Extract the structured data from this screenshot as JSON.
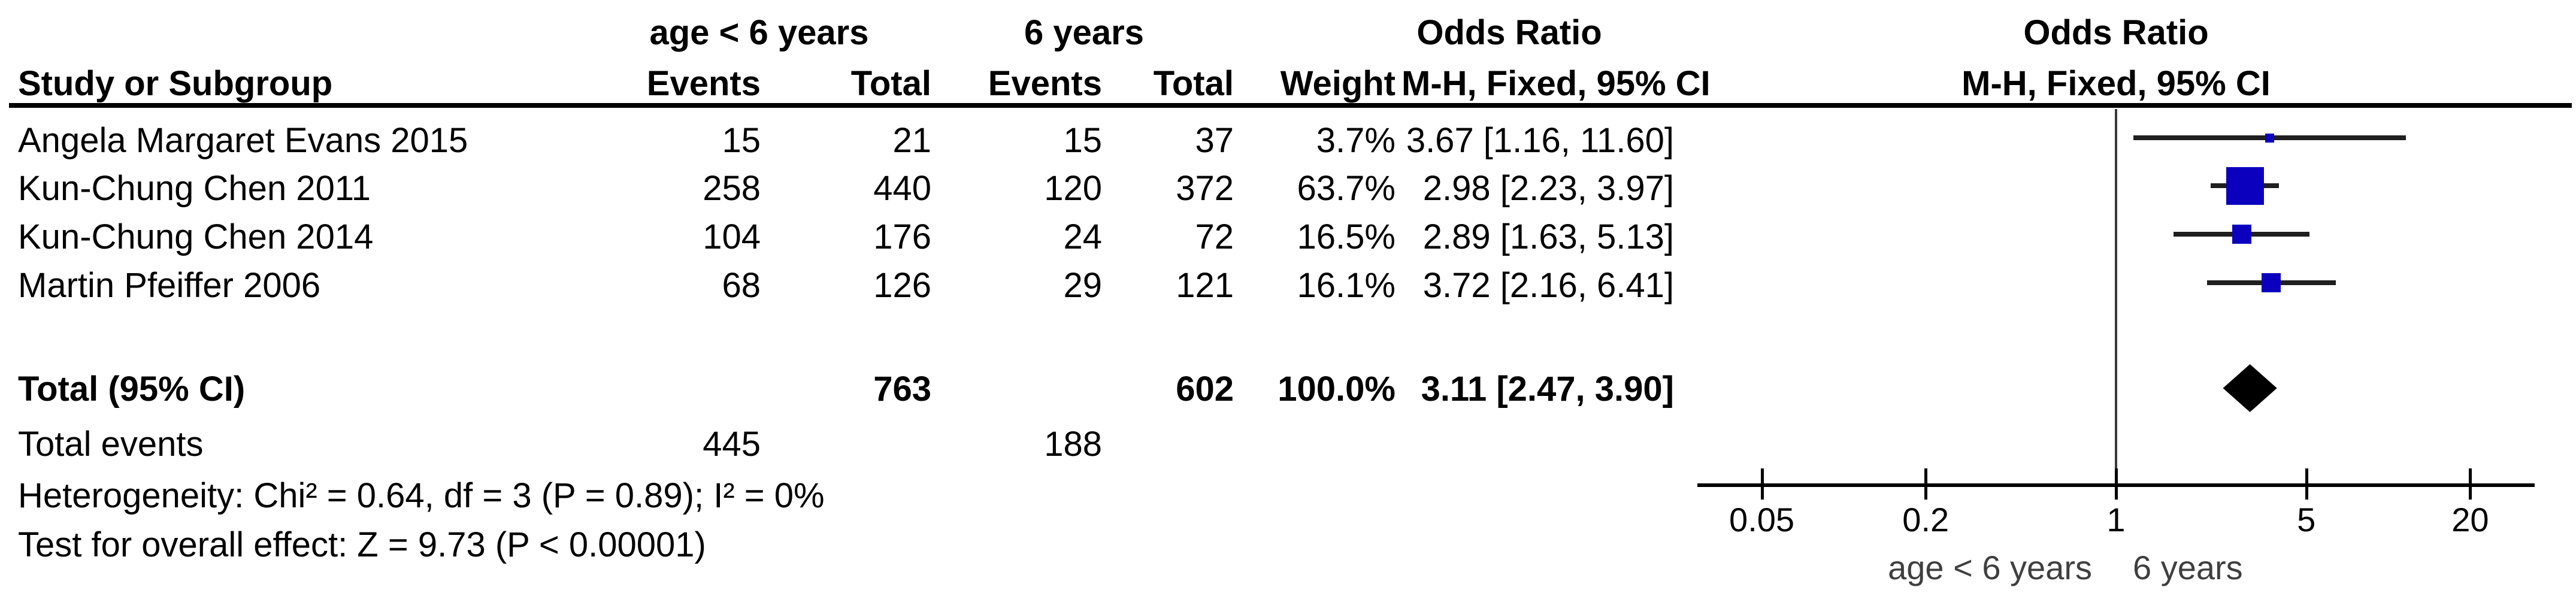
{
  "table": {
    "group1_label": "age < 6 years",
    "group2_label": "6 years",
    "or_col_title": "Odds Ratio",
    "or_col_sub": "M-H, Fixed, 95% CI",
    "plot_col_title": "Odds Ratio",
    "plot_col_sub": "M-H, Fixed, 95% CI",
    "headers": {
      "study": "Study or Subgroup",
      "events": "Events",
      "total": "Total",
      "weight": "Weight"
    },
    "rows": [
      {
        "study": "Angela Margaret Evans 2015",
        "e1": "15",
        "t1": "21",
        "e2": "15",
        "t2": "37",
        "weight": "3.7%",
        "or_ci": "3.67 [1.16, 11.60]"
      },
      {
        "study": "Kun-Chung Chen 2011",
        "e1": "258",
        "t1": "440",
        "e2": "120",
        "t2": "372",
        "weight": "63.7%",
        "or_ci": "2.98 [2.23, 3.97]"
      },
      {
        "study": "Kun-Chung Chen 2014",
        "e1": "104",
        "t1": "176",
        "e2": "24",
        "t2": "72",
        "weight": "16.5%",
        "or_ci": "2.89 [1.63, 5.13]"
      },
      {
        "study": "Martin Pfeiffer 2006",
        "e1": "68",
        "t1": "126",
        "e2": "29",
        "t2": "121",
        "weight": "16.1%",
        "or_ci": "3.72 [2.16, 6.41]"
      }
    ],
    "total_row": {
      "label": "Total (95% CI)",
      "t1": "763",
      "t2": "602",
      "weight": "100.0%",
      "or_ci": "3.11 [2.47, 3.90]"
    },
    "total_events": {
      "label": "Total events",
      "e1": "445",
      "e2": "188"
    },
    "heterogeneity": "Heterogeneity: Chi² = 0.64, df = 3 (P = 0.89); I² = 0%",
    "overall_effect": "Test for overall effect: Z = 9.73 (P < 0.00001)"
  },
  "chart_data": {
    "type": "scatter",
    "subtype": "forest-plot",
    "title": "Odds Ratio",
    "subtitle": "M-H, Fixed, 95% CI",
    "x_scale": "log10",
    "xlim": [
      0.029,
      34.5
    ],
    "ticks": [
      {
        "value": 0.05,
        "label": "0.05"
      },
      {
        "value": 0.2,
        "label": "0.2"
      },
      {
        "value": 1,
        "label": "1"
      },
      {
        "value": 5,
        "label": "5"
      },
      {
        "value": 20,
        "label": "20"
      }
    ],
    "axis_label_left": "age < 6 years",
    "axis_label_right": "6 years",
    "studies": [
      {
        "name": "Angela Margaret Evans 2015",
        "or": 3.67,
        "ci_low": 1.16,
        "ci_high": 11.6,
        "weight_pct": 3.7
      },
      {
        "name": "Kun-Chung Chen 2011",
        "or": 2.98,
        "ci_low": 2.23,
        "ci_high": 3.97,
        "weight_pct": 63.7
      },
      {
        "name": "Kun-Chung Chen 2014",
        "or": 2.89,
        "ci_low": 1.63,
        "ci_high": 5.13,
        "weight_pct": 16.5
      },
      {
        "name": "Martin Pfeiffer 2006",
        "or": 3.72,
        "ci_low": 2.16,
        "ci_high": 6.41,
        "weight_pct": 16.1
      }
    ],
    "overall": {
      "label": "Total (95% CI)",
      "or": 3.11,
      "ci_low": 2.47,
      "ci_high": 3.9,
      "weight_pct": 100.0
    },
    "marker_color": "#0b00bd",
    "ci_line_color": "#1f1f1f",
    "diamond_color": "#000000",
    "axis_color": "#000000",
    "null_line_color": "#3a3a3a"
  }
}
